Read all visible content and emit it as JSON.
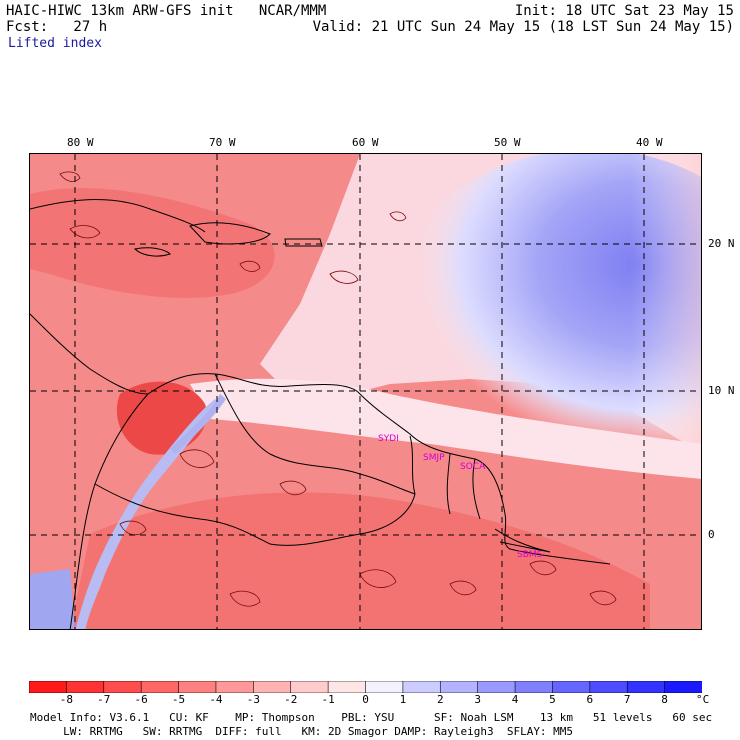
{
  "header": {
    "title": "HAIC-HIWC 13km ARW-GFS init   NCAR/MMM",
    "init": "Init: 18 UTC Sat 23 May 15",
    "fcst": "Fcst:   27 h",
    "valid": "Valid: 21 UTC Sun 24 May 15 (18 LST Sun 24 May 15)",
    "field": "Lifted index"
  },
  "map": {
    "lon_labels": [
      "80 W",
      "70 W",
      "60 W",
      "50 W",
      "40 W"
    ],
    "lat_labels": [
      "20 N",
      "10 N",
      "0"
    ],
    "stations": [
      "SYDI",
      "SMJP",
      "SOCA",
      "SBMS"
    ]
  },
  "colorbar": {
    "unit": "°C",
    "labels": [
      "-8",
      "-7",
      "-6",
      "-5",
      "-4",
      "-3",
      "-2",
      "-1",
      "0",
      "1",
      "2",
      "3",
      "4",
      "5",
      "6",
      "7",
      "8"
    ],
    "colors": [
      "#ff1a1a",
      "#ff3333",
      "#ff4d4d",
      "#ff6666",
      "#ff8080",
      "#ff9999",
      "#ffb3b3",
      "#ffcccc",
      "#ffe6e6",
      "#f2f2ff",
      "#ccccff",
      "#b3b3ff",
      "#9999ff",
      "#8080ff",
      "#6666ff",
      "#4d4dff",
      "#3333ff",
      "#1a1aff"
    ]
  },
  "footer": {
    "line1": "Model Info: V3.6.1   CU: KF    MP: Thompson    PBL: YSU      SF: Noah LSM    13 km   51 levels   60 sec",
    "line2": "     LW: RRTMG   SW: RRTMG  DIFF: full   KM: 2D Smagor DAMP: Rayleigh3  SFLAY: MM5"
  }
}
